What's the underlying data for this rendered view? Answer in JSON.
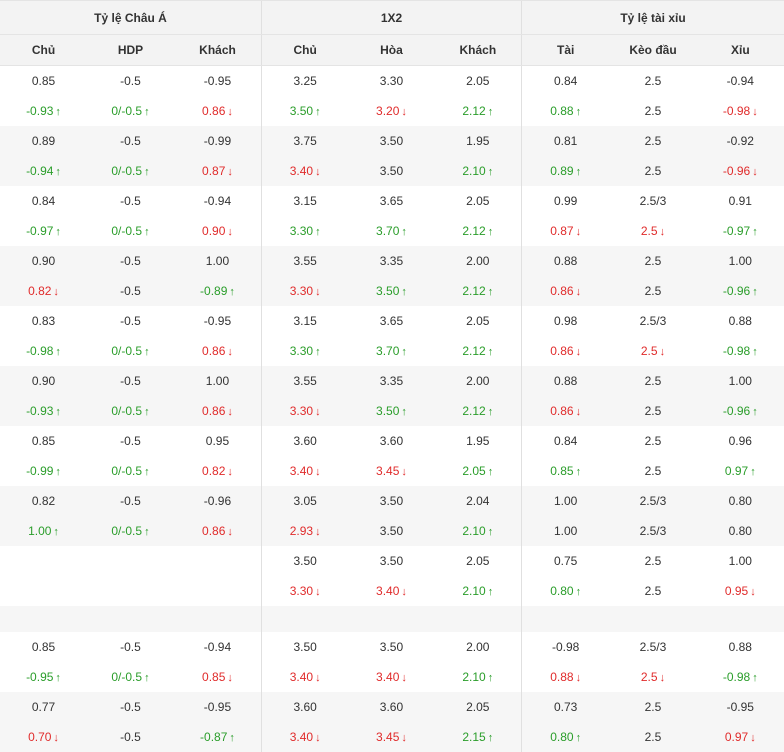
{
  "headers": {
    "groups": [
      "Tỷ lệ Châu Á",
      "1X2",
      "Tỷ lệ tài xỉu"
    ],
    "asian_cols": [
      "Chủ",
      "HDP",
      "Khách"
    ],
    "x12_cols": [
      "Chủ",
      "Hòa",
      "Khách"
    ],
    "ou_cols": [
      "Tài",
      "Kèo đầu",
      "Xỉu"
    ]
  },
  "arrows": {
    "up": "↑",
    "down": "↓"
  },
  "colors": {
    "up": "#2a9d2a",
    "down": "#e02b2b",
    "shade": "#f6f6f6",
    "header": "#f3f3f3"
  },
  "rows": [
    {
      "shade": false,
      "cells": [
        [
          "0.85",
          ""
        ],
        [
          "-0.5",
          ""
        ],
        [
          "-0.95",
          ""
        ],
        [
          "3.25",
          ""
        ],
        [
          "3.30",
          ""
        ],
        [
          "2.05",
          ""
        ],
        [
          "0.84",
          ""
        ],
        [
          "2.5",
          ""
        ],
        [
          "-0.94",
          ""
        ]
      ]
    },
    {
      "shade": false,
      "cells": [
        [
          "-0.93",
          "up"
        ],
        [
          "0/-0.5",
          "up"
        ],
        [
          "0.86",
          "down"
        ],
        [
          "3.50",
          "up"
        ],
        [
          "3.20",
          "down"
        ],
        [
          "2.12",
          "up"
        ],
        [
          "0.88",
          "up"
        ],
        [
          "2.5",
          ""
        ],
        [
          "-0.98",
          "down"
        ]
      ]
    },
    {
      "shade": true,
      "cells": [
        [
          "0.89",
          ""
        ],
        [
          "-0.5",
          ""
        ],
        [
          "-0.99",
          ""
        ],
        [
          "3.75",
          ""
        ],
        [
          "3.50",
          ""
        ],
        [
          "1.95",
          ""
        ],
        [
          "0.81",
          ""
        ],
        [
          "2.5",
          ""
        ],
        [
          "-0.92",
          ""
        ]
      ]
    },
    {
      "shade": true,
      "cells": [
        [
          "-0.94",
          "up"
        ],
        [
          "0/-0.5",
          "up"
        ],
        [
          "0.87",
          "down"
        ],
        [
          "3.40",
          "down"
        ],
        [
          "3.50",
          ""
        ],
        [
          "2.10",
          "up"
        ],
        [
          "0.89",
          "up"
        ],
        [
          "2.5",
          ""
        ],
        [
          "-0.96",
          "down"
        ]
      ]
    },
    {
      "shade": false,
      "cells": [
        [
          "0.84",
          ""
        ],
        [
          "-0.5",
          ""
        ],
        [
          "-0.94",
          ""
        ],
        [
          "3.15",
          ""
        ],
        [
          "3.65",
          ""
        ],
        [
          "2.05",
          ""
        ],
        [
          "0.99",
          ""
        ],
        [
          "2.5/3",
          ""
        ],
        [
          "0.91",
          ""
        ]
      ]
    },
    {
      "shade": false,
      "cells": [
        [
          "-0.97",
          "up"
        ],
        [
          "0/-0.5",
          "up"
        ],
        [
          "0.90",
          "down"
        ],
        [
          "3.30",
          "up"
        ],
        [
          "3.70",
          "up"
        ],
        [
          "2.12",
          "up"
        ],
        [
          "0.87",
          "down"
        ],
        [
          "2.5",
          "down"
        ],
        [
          "-0.97",
          "up"
        ]
      ]
    },
    {
      "shade": true,
      "cells": [
        [
          "0.90",
          ""
        ],
        [
          "-0.5",
          ""
        ],
        [
          "1.00",
          ""
        ],
        [
          "3.55",
          ""
        ],
        [
          "3.35",
          ""
        ],
        [
          "2.00",
          ""
        ],
        [
          "0.88",
          ""
        ],
        [
          "2.5",
          ""
        ],
        [
          "1.00",
          ""
        ]
      ]
    },
    {
      "shade": true,
      "cells": [
        [
          "0.82",
          "down"
        ],
        [
          "-0.5",
          ""
        ],
        [
          "-0.89",
          "up"
        ],
        [
          "3.30",
          "down"
        ],
        [
          "3.50",
          "up"
        ],
        [
          "2.12",
          "up"
        ],
        [
          "0.86",
          "down"
        ],
        [
          "2.5",
          ""
        ],
        [
          "-0.96",
          "up"
        ]
      ]
    },
    {
      "shade": false,
      "cells": [
        [
          "0.83",
          ""
        ],
        [
          "-0.5",
          ""
        ],
        [
          "-0.95",
          ""
        ],
        [
          "3.15",
          ""
        ],
        [
          "3.65",
          ""
        ],
        [
          "2.05",
          ""
        ],
        [
          "0.98",
          ""
        ],
        [
          "2.5/3",
          ""
        ],
        [
          "0.88",
          ""
        ]
      ]
    },
    {
      "shade": false,
      "cells": [
        [
          "-0.98",
          "up"
        ],
        [
          "0/-0.5",
          "up"
        ],
        [
          "0.86",
          "down"
        ],
        [
          "3.30",
          "up"
        ],
        [
          "3.70",
          "up"
        ],
        [
          "2.12",
          "up"
        ],
        [
          "0.86",
          "down"
        ],
        [
          "2.5",
          "down"
        ],
        [
          "-0.98",
          "up"
        ]
      ]
    },
    {
      "shade": true,
      "cells": [
        [
          "0.90",
          ""
        ],
        [
          "-0.5",
          ""
        ],
        [
          "1.00",
          ""
        ],
        [
          "3.55",
          ""
        ],
        [
          "3.35",
          ""
        ],
        [
          "2.00",
          ""
        ],
        [
          "0.88",
          ""
        ],
        [
          "2.5",
          ""
        ],
        [
          "1.00",
          ""
        ]
      ]
    },
    {
      "shade": true,
      "cells": [
        [
          "-0.93",
          "up"
        ],
        [
          "0/-0.5",
          "up"
        ],
        [
          "0.86",
          "down"
        ],
        [
          "3.30",
          "down"
        ],
        [
          "3.50",
          "up"
        ],
        [
          "2.12",
          "up"
        ],
        [
          "0.86",
          "down"
        ],
        [
          "2.5",
          ""
        ],
        [
          "-0.96",
          "up"
        ]
      ]
    },
    {
      "shade": false,
      "cells": [
        [
          "0.85",
          ""
        ],
        [
          "-0.5",
          ""
        ],
        [
          "0.95",
          ""
        ],
        [
          "3.60",
          ""
        ],
        [
          "3.60",
          ""
        ],
        [
          "1.95",
          ""
        ],
        [
          "0.84",
          ""
        ],
        [
          "2.5",
          ""
        ],
        [
          "0.96",
          ""
        ]
      ]
    },
    {
      "shade": false,
      "cells": [
        [
          "-0.99",
          "up"
        ],
        [
          "0/-0.5",
          "up"
        ],
        [
          "0.82",
          "down"
        ],
        [
          "3.40",
          "down"
        ],
        [
          "3.45",
          "down"
        ],
        [
          "2.05",
          "up"
        ],
        [
          "0.85",
          "up"
        ],
        [
          "2.5",
          ""
        ],
        [
          "0.97",
          "up"
        ]
      ]
    },
    {
      "shade": true,
      "cells": [
        [
          "0.82",
          ""
        ],
        [
          "-0.5",
          ""
        ],
        [
          "-0.96",
          ""
        ],
        [
          "3.05",
          ""
        ],
        [
          "3.50",
          ""
        ],
        [
          "2.04",
          ""
        ],
        [
          "1.00",
          ""
        ],
        [
          "2.5/3",
          ""
        ],
        [
          "0.80",
          ""
        ]
      ]
    },
    {
      "shade": true,
      "cells": [
        [
          "1.00",
          "up"
        ],
        [
          "0/-0.5",
          "up"
        ],
        [
          "0.86",
          "down"
        ],
        [
          "2.93",
          "down"
        ],
        [
          "3.50",
          ""
        ],
        [
          "2.10",
          "up"
        ],
        [
          "1.00",
          ""
        ],
        [
          "2.5/3",
          ""
        ],
        [
          "0.80",
          ""
        ]
      ]
    },
    {
      "shade": false,
      "cells": [
        [
          "",
          ""
        ],
        [
          "",
          ""
        ],
        [
          "",
          ""
        ],
        [
          "3.50",
          ""
        ],
        [
          "3.50",
          ""
        ],
        [
          "2.05",
          ""
        ],
        [
          "0.75",
          ""
        ],
        [
          "2.5",
          ""
        ],
        [
          "1.00",
          ""
        ]
      ]
    },
    {
      "shade": false,
      "cells": [
        [
          "",
          ""
        ],
        [
          "",
          ""
        ],
        [
          "",
          ""
        ],
        [
          "3.30",
          "down"
        ],
        [
          "3.40",
          "down"
        ],
        [
          "2.10",
          "up"
        ],
        [
          "0.80",
          "up"
        ],
        [
          "2.5",
          ""
        ],
        [
          "0.95",
          "down"
        ]
      ]
    },
    {
      "gap": true,
      "shade": true
    },
    {
      "shade": false,
      "cells": [
        [
          "0.85",
          ""
        ],
        [
          "-0.5",
          ""
        ],
        [
          "-0.94",
          ""
        ],
        [
          "3.50",
          ""
        ],
        [
          "3.50",
          ""
        ],
        [
          "2.00",
          ""
        ],
        [
          "-0.98",
          ""
        ],
        [
          "2.5/3",
          ""
        ],
        [
          "0.88",
          ""
        ]
      ]
    },
    {
      "shade": false,
      "cells": [
        [
          "-0.95",
          "up"
        ],
        [
          "0/-0.5",
          "up"
        ],
        [
          "0.85",
          "down"
        ],
        [
          "3.40",
          "down"
        ],
        [
          "3.40",
          "down"
        ],
        [
          "2.10",
          "up"
        ],
        [
          "0.88",
          "down"
        ],
        [
          "2.5",
          "down"
        ],
        [
          "-0.98",
          "up"
        ]
      ]
    },
    {
      "shade": true,
      "cells": [
        [
          "0.77",
          ""
        ],
        [
          "-0.5",
          ""
        ],
        [
          "-0.95",
          ""
        ],
        [
          "3.60",
          ""
        ],
        [
          "3.60",
          ""
        ],
        [
          "2.05",
          ""
        ],
        [
          "0.73",
          ""
        ],
        [
          "2.5",
          ""
        ],
        [
          "-0.95",
          ""
        ]
      ]
    },
    {
      "shade": true,
      "cells": [
        [
          "0.70",
          "down"
        ],
        [
          "-0.5",
          ""
        ],
        [
          "-0.87",
          "up"
        ],
        [
          "3.40",
          "down"
        ],
        [
          "3.45",
          "down"
        ],
        [
          "2.15",
          "up"
        ],
        [
          "0.80",
          "up"
        ],
        [
          "2.5",
          ""
        ],
        [
          "0.97",
          "down"
        ]
      ]
    }
  ]
}
